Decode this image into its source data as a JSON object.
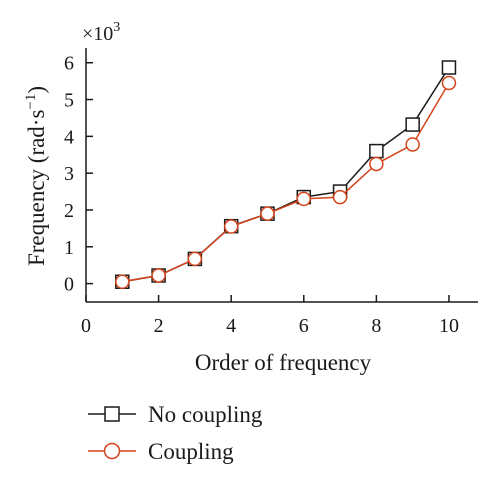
{
  "chart_data": {
    "type": "line",
    "title": "",
    "xlabel": "Order of frequency",
    "ylabel": "Frequency (rad·s",
    "ylabel_sup": "−1",
    "ylabel_close": ")",
    "y_multiplier": "×10",
    "y_multiplier_exp": "3",
    "xlim": [
      0,
      10.8
    ],
    "ylim": [
      -0.5,
      6.4
    ],
    "xticks": [
      0,
      2,
      4,
      6,
      8,
      10
    ],
    "yticks": [
      0,
      1,
      2,
      3,
      4,
      5,
      6
    ],
    "grid": false,
    "legend_position": "below",
    "series": [
      {
        "name": "No coupling",
        "marker": "square",
        "color": "#1a1a1a",
        "x": [
          1,
          2,
          3,
          4,
          5,
          6,
          7,
          8,
          9,
          10
        ],
        "y": [
          0.05,
          0.22,
          0.67,
          1.56,
          1.9,
          2.35,
          2.5,
          3.6,
          4.32,
          5.87
        ]
      },
      {
        "name": "Coupling",
        "marker": "circle",
        "color": "#d4441c",
        "x": [
          1,
          2,
          3,
          4,
          5,
          6,
          7,
          8,
          9,
          10
        ],
        "y": [
          0.05,
          0.22,
          0.67,
          1.55,
          1.9,
          2.3,
          2.35,
          3.25,
          3.78,
          5.45
        ]
      }
    ]
  }
}
